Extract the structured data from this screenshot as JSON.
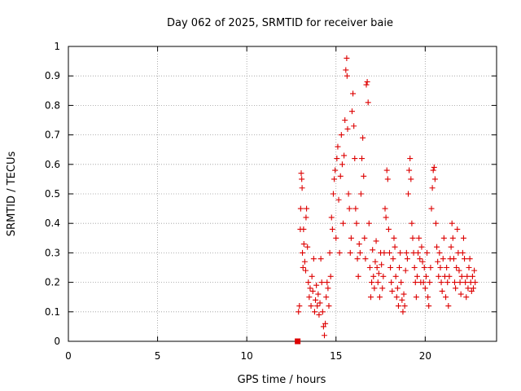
{
  "chart_data": {
    "type": "scatter",
    "title": "Day 062 of 2025, SRMTID for receiver baie",
    "xlabel": "GPS time / hours",
    "ylabel": "SRMTID / TECUs",
    "xlim": [
      0,
      24
    ],
    "ylim": [
      0,
      1
    ],
    "xticks": [
      "0",
      "5",
      "10",
      "15",
      "20"
    ],
    "xtick_values": [
      0,
      5,
      10,
      15,
      20
    ],
    "yticks": [
      "0",
      "0.1",
      "0.2",
      "0.3",
      "0.4",
      "0.5",
      "0.6",
      "0.7",
      "0.8",
      "0.9",
      "1"
    ],
    "ytick_values": [
      0,
      0.1,
      0.2,
      0.3,
      0.4,
      0.5,
      0.6,
      0.7,
      0.8,
      0.9,
      1
    ],
    "grid": true,
    "color": "#dd0000",
    "zero_marker": {
      "x": 12.85,
      "y": 0,
      "shape": "square"
    },
    "series": [
      {
        "name": "SRMTID",
        "marker": "plus",
        "points": [
          [
            12.9,
            0.1
          ],
          [
            12.95,
            0.12
          ],
          [
            13.0,
            0.38
          ],
          [
            13.02,
            0.45
          ],
          [
            13.05,
            0.57
          ],
          [
            13.08,
            0.55
          ],
          [
            13.1,
            0.52
          ],
          [
            13.12,
            0.3
          ],
          [
            13.15,
            0.25
          ],
          [
            13.18,
            0.38
          ],
          [
            13.2,
            0.33
          ],
          [
            13.25,
            0.27
          ],
          [
            13.3,
            0.24
          ],
          [
            13.32,
            0.42
          ],
          [
            13.35,
            0.45
          ],
          [
            13.4,
            0.32
          ],
          [
            13.45,
            0.2
          ],
          [
            13.5,
            0.15
          ],
          [
            13.55,
            0.18
          ],
          [
            13.6,
            0.12
          ],
          [
            13.65,
            0.22
          ],
          [
            13.7,
            0.17
          ],
          [
            13.75,
            0.28
          ],
          [
            13.8,
            0.1
          ],
          [
            13.85,
            0.14
          ],
          [
            13.9,
            0.19
          ],
          [
            13.95,
            0.12
          ],
          [
            14.0,
            0.16
          ],
          [
            14.05,
            0.09
          ],
          [
            14.1,
            0.13
          ],
          [
            14.15,
            0.28
          ],
          [
            14.2,
            0.2
          ],
          [
            14.25,
            0.1
          ],
          [
            14.3,
            0.05
          ],
          [
            14.35,
            0.02
          ],
          [
            14.4,
            0.06
          ],
          [
            14.45,
            0.15
          ],
          [
            14.5,
            0.2
          ],
          [
            14.55,
            0.18
          ],
          [
            14.6,
            0.12
          ],
          [
            14.65,
            0.3
          ],
          [
            14.7,
            0.22
          ],
          [
            14.75,
            0.42
          ],
          [
            14.8,
            0.38
          ],
          [
            14.85,
            0.5
          ],
          [
            14.9,
            0.55
          ],
          [
            14.95,
            0.58
          ],
          [
            15.0,
            0.35
          ],
          [
            15.05,
            0.62
          ],
          [
            15.1,
            0.66
          ],
          [
            15.15,
            0.48
          ],
          [
            15.2,
            0.3
          ],
          [
            15.25,
            0.56
          ],
          [
            15.3,
            0.7
          ],
          [
            15.35,
            0.6
          ],
          [
            15.4,
            0.4
          ],
          [
            15.45,
            0.63
          ],
          [
            15.5,
            0.75
          ],
          [
            15.55,
            0.92
          ],
          [
            15.6,
            0.96
          ],
          [
            15.62,
            0.9
          ],
          [
            15.65,
            0.72
          ],
          [
            15.7,
            0.5
          ],
          [
            15.75,
            0.45
          ],
          [
            15.8,
            0.3
          ],
          [
            15.85,
            0.35
          ],
          [
            15.9,
            0.78
          ],
          [
            15.95,
            0.84
          ],
          [
            16.0,
            0.73
          ],
          [
            16.05,
            0.62
          ],
          [
            16.1,
            0.45
          ],
          [
            16.15,
            0.4
          ],
          [
            16.2,
            0.28
          ],
          [
            16.25,
            0.22
          ],
          [
            16.3,
            0.33
          ],
          [
            16.35,
            0.3
          ],
          [
            16.4,
            0.5
          ],
          [
            16.45,
            0.62
          ],
          [
            16.5,
            0.69
          ],
          [
            16.55,
            0.56
          ],
          [
            16.6,
            0.35
          ],
          [
            16.65,
            0.28
          ],
          [
            16.7,
            0.87
          ],
          [
            16.75,
            0.88
          ],
          [
            16.8,
            0.81
          ],
          [
            16.85,
            0.4
          ],
          [
            16.9,
            0.25
          ],
          [
            16.95,
            0.15
          ],
          [
            17.0,
            0.2
          ],
          [
            17.05,
            0.31
          ],
          [
            17.1,
            0.22
          ],
          [
            17.15,
            0.18
          ],
          [
            17.2,
            0.27
          ],
          [
            17.25,
            0.34
          ],
          [
            17.3,
            0.25
          ],
          [
            17.35,
            0.2
          ],
          [
            17.4,
            0.23
          ],
          [
            17.45,
            0.15
          ],
          [
            17.5,
            0.3
          ],
          [
            17.55,
            0.26
          ],
          [
            17.6,
            0.18
          ],
          [
            17.65,
            0.22
          ],
          [
            17.7,
            0.3
          ],
          [
            17.75,
            0.45
          ],
          [
            17.8,
            0.42
          ],
          [
            17.85,
            0.58
          ],
          [
            17.9,
            0.55
          ],
          [
            17.95,
            0.38
          ],
          [
            18.0,
            0.3
          ],
          [
            18.05,
            0.25
          ],
          [
            18.1,
            0.2
          ],
          [
            18.15,
            0.17
          ],
          [
            18.2,
            0.28
          ],
          [
            18.25,
            0.35
          ],
          [
            18.3,
            0.32
          ],
          [
            18.35,
            0.22
          ],
          [
            18.4,
            0.15
          ],
          [
            18.45,
            0.18
          ],
          [
            18.5,
            0.12
          ],
          [
            18.55,
            0.25
          ],
          [
            18.6,
            0.3
          ],
          [
            18.65,
            0.2
          ],
          [
            18.7,
            0.14
          ],
          [
            18.75,
            0.1
          ],
          [
            18.8,
            0.16
          ],
          [
            18.85,
            0.12
          ],
          [
            18.9,
            0.24
          ],
          [
            18.95,
            0.3
          ],
          [
            19.0,
            0.28
          ],
          [
            19.05,
            0.5
          ],
          [
            19.1,
            0.58
          ],
          [
            19.15,
            0.62
          ],
          [
            19.2,
            0.55
          ],
          [
            19.25,
            0.4
          ],
          [
            19.3,
            0.35
          ],
          [
            19.35,
            0.3
          ],
          [
            19.4,
            0.25
          ],
          [
            19.45,
            0.2
          ],
          [
            19.5,
            0.15
          ],
          [
            19.55,
            0.22
          ],
          [
            19.6,
            0.3
          ],
          [
            19.65,
            0.35
          ],
          [
            19.7,
            0.28
          ],
          [
            19.75,
            0.2
          ],
          [
            19.8,
            0.32
          ],
          [
            19.85,
            0.27
          ],
          [
            19.9,
            0.2
          ],
          [
            19.95,
            0.25
          ],
          [
            20.0,
            0.18
          ],
          [
            20.05,
            0.22
          ],
          [
            20.1,
            0.3
          ],
          [
            20.15,
            0.15
          ],
          [
            20.2,
            0.12
          ],
          [
            20.25,
            0.2
          ],
          [
            20.3,
            0.25
          ],
          [
            20.35,
            0.45
          ],
          [
            20.4,
            0.52
          ],
          [
            20.45,
            0.58
          ],
          [
            20.5,
            0.59
          ],
          [
            20.55,
            0.55
          ],
          [
            20.6,
            0.4
          ],
          [
            20.65,
            0.32
          ],
          [
            20.7,
            0.27
          ],
          [
            20.75,
            0.22
          ],
          [
            20.8,
            0.3
          ],
          [
            20.85,
            0.25
          ],
          [
            20.9,
            0.2
          ],
          [
            20.95,
            0.17
          ],
          [
            21.0,
            0.28
          ],
          [
            21.05,
            0.35
          ],
          [
            21.1,
            0.22
          ],
          [
            21.15,
            0.15
          ],
          [
            21.2,
            0.25
          ],
          [
            21.25,
            0.2
          ],
          [
            21.3,
            0.12
          ],
          [
            21.35,
            0.22
          ],
          [
            21.4,
            0.28
          ],
          [
            21.45,
            0.32
          ],
          [
            21.5,
            0.4
          ],
          [
            21.55,
            0.35
          ],
          [
            21.6,
            0.28
          ],
          [
            21.65,
            0.2
          ],
          [
            21.7,
            0.18
          ],
          [
            21.75,
            0.25
          ],
          [
            21.8,
            0.38
          ],
          [
            21.85,
            0.3
          ],
          [
            21.9,
            0.24
          ],
          [
            21.95,
            0.2
          ],
          [
            22.0,
            0.16
          ],
          [
            22.05,
            0.22
          ],
          [
            22.1,
            0.3
          ],
          [
            22.15,
            0.35
          ],
          [
            22.2,
            0.28
          ],
          [
            22.25,
            0.2
          ],
          [
            22.3,
            0.15
          ],
          [
            22.35,
            0.22
          ],
          [
            22.4,
            0.18
          ],
          [
            22.45,
            0.25
          ],
          [
            22.5,
            0.28
          ],
          [
            22.55,
            0.2
          ],
          [
            22.6,
            0.17
          ],
          [
            22.65,
            0.22
          ],
          [
            22.7,
            0.18
          ],
          [
            22.75,
            0.24
          ],
          [
            22.8,
            0.2
          ]
        ]
      }
    ]
  }
}
